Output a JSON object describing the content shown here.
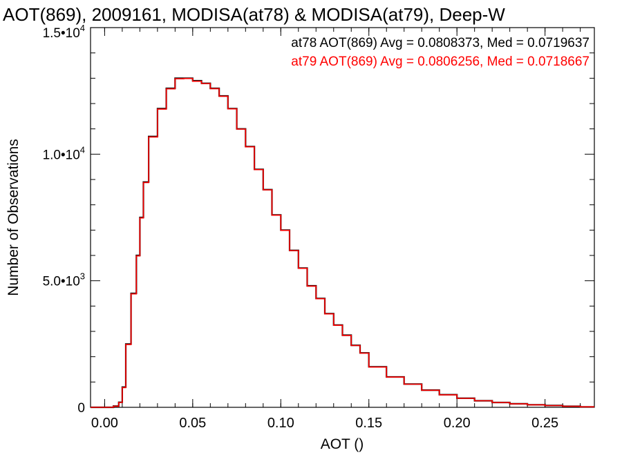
{
  "chart_data": {
    "type": "line",
    "title": "AOT(869), 2009161, MODISA(at78) & MODISA(at79), Deep-W",
    "xlabel": "AOT ()",
    "ylabel": "Number of Observations",
    "xlim": [
      -0.008,
      0.278
    ],
    "ylim": [
      0,
      15000
    ],
    "xticks": [
      0.0,
      0.05,
      0.1,
      0.15,
      0.2,
      0.25
    ],
    "xtick_labels": [
      "0.00",
      "0.05",
      "0.10",
      "0.15",
      "0.20",
      "0.25"
    ],
    "yticks": [
      {
        "value": 0,
        "mantissa": "0",
        "exp": ""
      },
      {
        "value": 5000,
        "mantissa": "5.0•10",
        "exp": "3"
      },
      {
        "value": 10000,
        "mantissa": "1.0•10",
        "exp": "4"
      },
      {
        "value": 15000,
        "mantissa": "1.5•10",
        "exp": "4"
      }
    ],
    "grid": false,
    "legend_placement": "top-right",
    "x": [
      0.0,
      0.005,
      0.008,
      0.01,
      0.012,
      0.015,
      0.018,
      0.02,
      0.022,
      0.025,
      0.03,
      0.035,
      0.04,
      0.045,
      0.05,
      0.055,
      0.06,
      0.065,
      0.07,
      0.075,
      0.08,
      0.085,
      0.09,
      0.095,
      0.1,
      0.105,
      0.11,
      0.115,
      0.12,
      0.125,
      0.13,
      0.135,
      0.14,
      0.145,
      0.15,
      0.16,
      0.17,
      0.18,
      0.19,
      0.2,
      0.21,
      0.22,
      0.23,
      0.24,
      0.25,
      0.26,
      0.27,
      0.278
    ],
    "series": [
      {
        "name": "at78",
        "color": "#000000",
        "values": [
          0,
          0,
          50,
          200,
          800,
          2500,
          4500,
          6000,
          7500,
          8900,
          10700,
          11800,
          12600,
          13000,
          13000,
          12900,
          12800,
          12600,
          12300,
          11800,
          11000,
          10300,
          9400,
          8600,
          7600,
          7000,
          6200,
          5500,
          4800,
          4300,
          3700,
          3250,
          2850,
          2450,
          2150,
          1600,
          1200,
          920,
          680,
          500,
          360,
          260,
          190,
          140,
          100,
          70,
          40,
          20
        ]
      },
      {
        "name": "at79",
        "color": "#ff0000",
        "values": [
          0,
          0,
          45,
          190,
          780,
          2480,
          4480,
          5980,
          7480,
          8880,
          10680,
          11780,
          12580,
          12980,
          12990,
          12880,
          12790,
          12590,
          12290,
          11790,
          10990,
          10290,
          9390,
          8590,
          7590,
          6990,
          6190,
          5490,
          4790,
          4290,
          3690,
          3240,
          2840,
          2440,
          2140,
          1590,
          1195,
          915,
          675,
          495,
          355,
          258,
          188,
          138,
          98,
          68,
          38,
          18
        ]
      }
    ],
    "annotations": [
      {
        "text": "at78 AOT(869) Avg = 0.0808373, Med = 0.0719637",
        "color": "#000000"
      },
      {
        "text": "at79 AOT(869) Avg = 0.0806256, Med = 0.0718667",
        "color": "#ff0000"
      }
    ]
  }
}
